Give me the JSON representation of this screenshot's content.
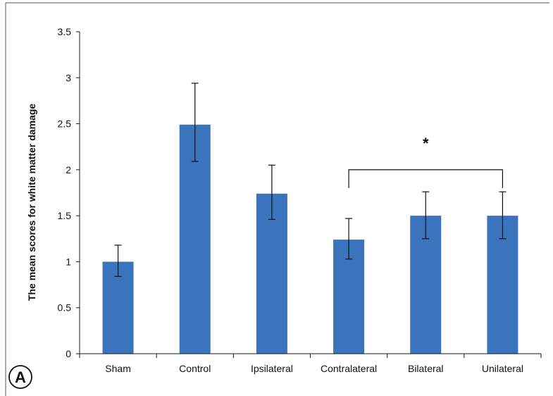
{
  "panel_label": "A",
  "significance_marker": "*",
  "colors": {
    "bar": "#3a74bd",
    "axis": "#1a1a1a",
    "frame": "#555555"
  },
  "chart_data": {
    "type": "bar",
    "title": "",
    "xlabel": "",
    "ylabel": "The mean scores for white matter damage",
    "categories": [
      "Sham",
      "Control",
      "Ipsilateral",
      "Contralateral",
      "Bilateral",
      "Unilateral"
    ],
    "values": [
      1.0,
      2.49,
      1.74,
      1.24,
      1.5,
      1.5
    ],
    "error_low": [
      0.84,
      2.09,
      1.46,
      1.03,
      1.25,
      1.25
    ],
    "error_high": [
      1.18,
      2.94,
      2.05,
      1.47,
      1.76,
      1.76
    ],
    "ylim": [
      0,
      3.5
    ],
    "yticks": [
      0,
      0.5,
      1,
      1.5,
      2,
      2.5,
      3,
      3.5
    ],
    "ytick_labels": [
      "0",
      "0.5",
      "1",
      "1.5",
      "2",
      "2.5",
      "3",
      "3.5"
    ],
    "grid": false,
    "significance": {
      "from": "Contralateral",
      "to": "Unilateral",
      "bracket_y": 2.0,
      "label": "*"
    }
  }
}
